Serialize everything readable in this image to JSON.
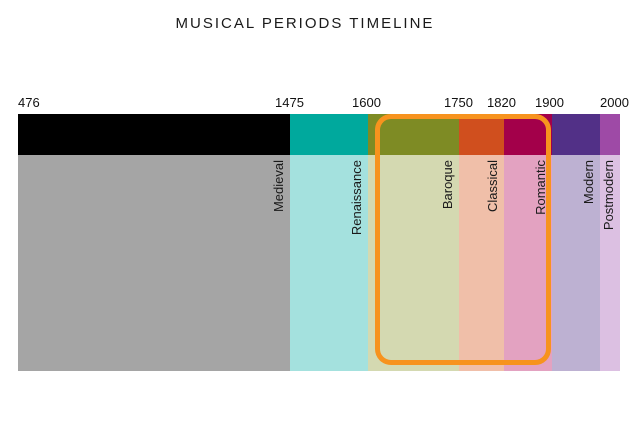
{
  "title": "MUSICAL PERIODS TIMELINE",
  "years": [
    "476",
    "1475",
    "1600",
    "1750",
    "1820",
    "1900",
    "2000"
  ],
  "periods": [
    {
      "name": "Medieval",
      "top_color": "#000000",
      "bottom_color": "#a5a5a5"
    },
    {
      "name": "Renaissance",
      "top_color": "#00a99d",
      "bottom_color": "#a4e1de"
    },
    {
      "name": "Baroque",
      "top_color": "#7e8b24",
      "bottom_color": "#d4d9b1"
    },
    {
      "name": "Classical",
      "top_color": "#d04f1e",
      "bottom_color": "#f0bfa9"
    },
    {
      "name": "Romantic",
      "top_color": "#a3004a",
      "bottom_color": "#e3a2c1"
    },
    {
      "name": "Modern",
      "top_color": "#523087",
      "bottom_color": "#bdb1d2"
    },
    {
      "name": "Postmodern",
      "top_color": "#9e4aa6",
      "bottom_color": "#dcc0e2"
    }
  ],
  "highlight_color": "#f7931e"
}
